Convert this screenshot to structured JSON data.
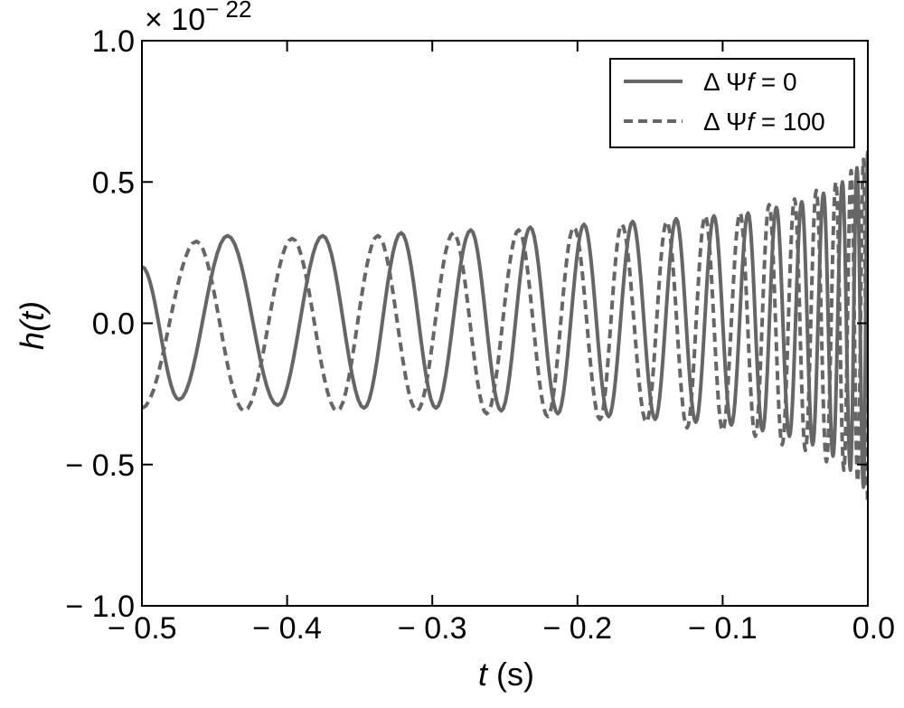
{
  "chart_data": {
    "type": "line",
    "title": "",
    "xlabel": "t",
    "xlabel_unit": "(s)",
    "ylabel": "h(t)",
    "offset_text": "× 10",
    "offset_exponent": "− 22",
    "xlim": [
      -0.5,
      0.0
    ],
    "ylim": [
      -1.0,
      1.0
    ],
    "x_ticks": [
      -0.5,
      -0.4,
      -0.3,
      -0.2,
      -0.1,
      0.0
    ],
    "x_tick_labels": [
      "− 0.5",
      "− 0.4",
      "− 0.3",
      "− 0.2",
      "− 0.1",
      "0.0"
    ],
    "y_ticks": [
      -1.0,
      -0.5,
      0.0,
      0.5,
      1.0
    ],
    "y_tick_labels": [
      "− 1.0",
      "− 0.5",
      "0.0",
      "0.5",
      "1.0"
    ],
    "grid": false,
    "legend_position": "top-right",
    "series": [
      {
        "name": "ΔΨf = 0",
        "legend_prefix": "Δ Ψ",
        "legend_var": "f",
        "legend_value": " = 0",
        "style": "solid",
        "color": "#666666",
        "peaks": [
          [
            -0.5,
            0.2
          ],
          [
            -0.4745,
            -0.27
          ],
          [
            -0.441,
            0.31
          ],
          [
            -0.4065,
            -0.29
          ],
          [
            -0.3755,
            0.31
          ],
          [
            -0.347,
            -0.3
          ],
          [
            -0.3215,
            0.32
          ],
          [
            -0.2975,
            -0.3
          ],
          [
            -0.2735,
            0.33
          ],
          [
            -0.2525,
            -0.31
          ],
          [
            -0.2325,
            0.34
          ],
          [
            -0.2135,
            -0.32
          ],
          [
            -0.1955,
            0.35
          ],
          [
            -0.1785,
            -0.33
          ],
          [
            -0.162,
            0.36
          ],
          [
            -0.1465,
            -0.34
          ],
          [
            -0.132,
            0.37
          ],
          [
            -0.1185,
            -0.35
          ],
          [
            -0.106,
            0.38
          ],
          [
            -0.094,
            -0.36
          ],
          [
            -0.0825,
            0.39
          ],
          [
            -0.0725,
            -0.38
          ],
          [
            -0.063,
            0.41
          ],
          [
            -0.054,
            -0.4
          ],
          [
            -0.0455,
            0.43
          ],
          [
            -0.038,
            -0.43
          ],
          [
            -0.0305,
            0.46
          ],
          [
            -0.024,
            -0.47
          ],
          [
            -0.0175,
            0.5
          ],
          [
            -0.012,
            -0.52
          ],
          [
            -0.0075,
            0.55
          ],
          [
            -0.003,
            -0.58
          ],
          [
            0.0,
            0.61
          ]
        ]
      },
      {
        "name": "ΔΨf = 100",
        "legend_prefix": "Δ Ψ",
        "legend_var": "f",
        "legend_value": " = 100",
        "style": "dashed",
        "color": "#666666",
        "peaks": [
          [
            -0.5,
            -0.3
          ],
          [
            -0.4625,
            0.29
          ],
          [
            -0.4295,
            -0.31
          ],
          [
            -0.3965,
            0.3
          ],
          [
            -0.3655,
            -0.31
          ],
          [
            -0.3375,
            0.31
          ],
          [
            -0.3105,
            -0.31
          ],
          [
            -0.2855,
            0.32
          ],
          [
            -0.2625,
            -0.32
          ],
          [
            -0.2405,
            0.33
          ],
          [
            -0.2205,
            -0.33
          ],
          [
            -0.2025,
            0.34
          ],
          [
            -0.1845,
            -0.34
          ],
          [
            -0.1695,
            0.35
          ],
          [
            -0.1525,
            -0.35
          ],
          [
            -0.1385,
            0.36
          ],
          [
            -0.1245,
            -0.37
          ],
          [
            -0.112,
            0.38
          ],
          [
            -0.1,
            -0.38
          ],
          [
            -0.088,
            0.39
          ],
          [
            -0.0775,
            -0.4
          ],
          [
            -0.068,
            0.42
          ],
          [
            -0.059,
            -0.43
          ],
          [
            -0.0505,
            0.44
          ],
          [
            -0.043,
            -0.45
          ],
          [
            -0.0355,
            0.47
          ],
          [
            -0.0285,
            -0.49
          ],
          [
            -0.022,
            0.5
          ],
          [
            -0.0165,
            -0.52
          ],
          [
            -0.0115,
            0.54
          ],
          [
            -0.007,
            -0.56
          ],
          [
            -0.003,
            0.58
          ],
          [
            0.0,
            -0.64
          ]
        ]
      }
    ]
  }
}
